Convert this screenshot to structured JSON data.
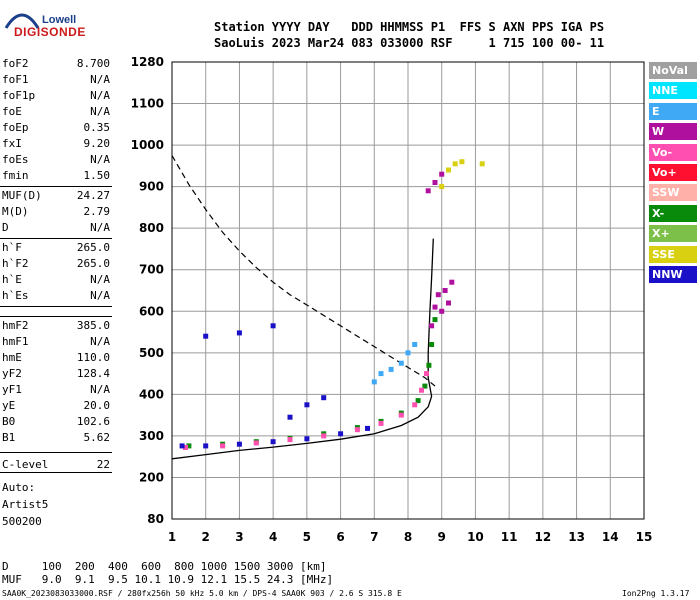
{
  "logo": {
    "top": "Lowell",
    "bottom": "DIGISONDE"
  },
  "header": {
    "line1": "Station YYYY DAY   DDD HHMMSS P1  FFS S AXN PPS IGA PS",
    "line2": "SaoLuis 2023 Mar24 083 033000 RSF     1 715 100 00- 11"
  },
  "params": [
    {
      "name": "foF2",
      "value": "8.700"
    },
    {
      "name": "foF1",
      "value": "N/A"
    },
    {
      "name": "foF1p",
      "value": "N/A"
    },
    {
      "name": "foE",
      "value": "N/A"
    },
    {
      "name": "foEp",
      "value": "0.35"
    },
    {
      "name": "fxI",
      "value": "9.20"
    },
    {
      "name": "foEs",
      "value": "N/A"
    },
    {
      "name": "fmin",
      "value": "1.50"
    },
    {
      "name": "MUF(D)",
      "value": "24.27"
    },
    {
      "name": "M(D)",
      "value": "2.79"
    },
    {
      "name": "D",
      "value": "N/A"
    },
    {
      "name": "h`F",
      "value": "265.0"
    },
    {
      "name": "h`F2",
      "value": "265.0"
    },
    {
      "name": "h`E",
      "value": "N/A"
    },
    {
      "name": "h`Es",
      "value": "N/A"
    },
    {
      "name": "hmF2",
      "value": "385.0"
    },
    {
      "name": "hmF1",
      "value": "N/A"
    },
    {
      "name": "hmE",
      "value": "110.0"
    },
    {
      "name": "yF2",
      "value": "128.4"
    },
    {
      "name": "yF1",
      "value": "N/A"
    },
    {
      "name": "yE",
      "value": "20.0"
    },
    {
      "name": "B0",
      "value": "102.6"
    },
    {
      "name": "B1",
      "value": "5.62"
    },
    {
      "name": "C-level",
      "value": "22"
    }
  ],
  "auto": {
    "line1": "Auto:",
    "line2": "Artist5",
    "line3": "500200"
  },
  "legend": [
    {
      "label": "NoVal",
      "color": "#a0a0a0"
    },
    {
      "label": "NNE",
      "color": "#00e5ff"
    },
    {
      "label": "E",
      "color": "#3fa9f5"
    },
    {
      "label": "W",
      "color": "#b0109e"
    },
    {
      "label": "Vo-",
      "color": "#ff4fb0"
    },
    {
      "label": "Vo+",
      "color": "#ff1030"
    },
    {
      "label": "SSW",
      "color": "#ffb0a8"
    },
    {
      "label": "X-",
      "color": "#0a8a0a"
    },
    {
      "label": "X+",
      "color": "#7cc04a"
    },
    {
      "label": "SSE",
      "color": "#d8d010"
    },
    {
      "label": "NNW",
      "color": "#1a10c8"
    }
  ],
  "footer": {
    "d_line": "D     100  200  400  600  800 1000 1500 3000 [km]",
    "muf_line": "MUF   9.0  9.1  9.5 10.1 10.9 12.1 15.5 24.3 [MHz]",
    "file_line": "SAA0K_2023083033000.RSF / 280fx256h 50 kHz 5.0 km / DPS-4 SAA0K 903 / 2.6 S 315.8 E",
    "version": "Ion2Png 1.3.17"
  },
  "chart_data": {
    "type": "scatter",
    "xlim": [
      1,
      15
    ],
    "ylim": [
      80,
      1280
    ],
    "x_ticks": [
      1,
      2,
      3,
      4,
      5,
      6,
      7,
      8,
      9,
      10,
      11,
      12,
      13,
      14,
      15
    ],
    "y_ticks": [
      80,
      200,
      300,
      400,
      500,
      600,
      700,
      800,
      900,
      1000,
      1100,
      1280
    ],
    "grid": true,
    "legend_position": "right",
    "series": [
      {
        "name": "X-",
        "color": "#0a8a0a",
        "points": [
          [
            1.5,
            276
          ],
          [
            2.5,
            280
          ],
          [
            3.5,
            286
          ],
          [
            4.5,
            294
          ],
          [
            5.5,
            305
          ],
          [
            6.5,
            320
          ],
          [
            7.2,
            335
          ],
          [
            7.8,
            355
          ],
          [
            8.3,
            385
          ],
          [
            8.5,
            420
          ],
          [
            8.62,
            470
          ],
          [
            8.7,
            520
          ],
          [
            8.8,
            580
          ]
        ]
      },
      {
        "name": "Vo-",
        "color": "#ff4fb0",
        "points": [
          [
            1.4,
            272
          ],
          [
            2.5,
            276
          ],
          [
            3.5,
            283
          ],
          [
            4.5,
            291
          ],
          [
            5.5,
            300
          ],
          [
            6.5,
            315
          ],
          [
            7.2,
            330
          ],
          [
            7.8,
            350
          ],
          [
            8.2,
            375
          ],
          [
            8.4,
            410
          ],
          [
            8.55,
            450
          ]
        ]
      },
      {
        "name": "NNW",
        "color": "#1a10c8",
        "points": [
          [
            1.3,
            276
          ],
          [
            2.0,
            276
          ],
          [
            3.0,
            280
          ],
          [
            4.0,
            286
          ],
          [
            5.0,
            293
          ],
          [
            6.0,
            305
          ],
          [
            6.8,
            318
          ],
          [
            2.0,
            540
          ],
          [
            3.0,
            548
          ],
          [
            4.0,
            565
          ],
          [
            4.5,
            345
          ],
          [
            5.0,
            375
          ],
          [
            5.5,
            392
          ]
        ]
      },
      {
        "name": "W",
        "color": "#b0109e",
        "points": [
          [
            8.7,
            565
          ],
          [
            8.8,
            610
          ],
          [
            8.9,
            640
          ],
          [
            9.0,
            600
          ],
          [
            9.1,
            650
          ],
          [
            9.2,
            620
          ],
          [
            9.3,
            670
          ],
          [
            8.6,
            890
          ],
          [
            8.8,
            910
          ],
          [
            9.0,
            930
          ]
        ]
      },
      {
        "name": "SSE",
        "color": "#d8d010",
        "points": [
          [
            9.0,
            900
          ],
          [
            9.2,
            940
          ],
          [
            9.4,
            955
          ],
          [
            9.6,
            960
          ],
          [
            10.2,
            955
          ]
        ]
      },
      {
        "name": "E",
        "color": "#3fa9f5",
        "points": [
          [
            7.0,
            430
          ],
          [
            7.2,
            450
          ],
          [
            7.5,
            460
          ],
          [
            7.8,
            475
          ],
          [
            8.0,
            500
          ],
          [
            8.2,
            520
          ]
        ]
      }
    ],
    "profile_curve": [
      [
        1.0,
        245
      ],
      [
        2.0,
        255
      ],
      [
        3.0,
        265
      ],
      [
        4.0,
        273
      ],
      [
        5.0,
        282
      ],
      [
        6.0,
        292
      ],
      [
        7.0,
        305
      ],
      [
        7.8,
        325
      ],
      [
        8.3,
        345
      ],
      [
        8.6,
        370
      ],
      [
        8.7,
        395
      ],
      [
        8.6,
        440
      ],
      [
        8.6,
        500
      ],
      [
        8.65,
        600
      ],
      [
        8.7,
        680
      ],
      [
        8.75,
        775
      ]
    ],
    "dashed_curve": [
      [
        1.0,
        975
      ],
      [
        1.5,
        905
      ],
      [
        2.0,
        845
      ],
      [
        2.5,
        790
      ],
      [
        3.0,
        745
      ],
      [
        3.5,
        705
      ],
      [
        4.0,
        670
      ],
      [
        4.5,
        640
      ],
      [
        5.0,
        615
      ],
      [
        5.5,
        590
      ],
      [
        6.0,
        565
      ],
      [
        6.5,
        540
      ],
      [
        7.0,
        515
      ],
      [
        7.5,
        490
      ],
      [
        8.0,
        465
      ],
      [
        8.5,
        440
      ],
      [
        8.8,
        420
      ]
    ]
  }
}
